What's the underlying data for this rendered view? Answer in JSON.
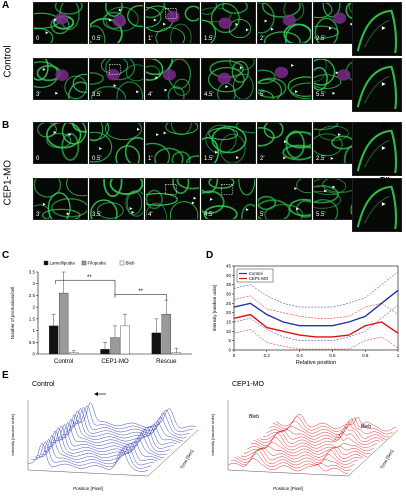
{
  "panels": {
    "A": "A",
    "B": "B",
    "C": "C",
    "D": "D",
    "E": "E",
    "A1": "A'",
    "A2": "A''",
    "B1": "B'",
    "B2": "B''"
  },
  "row_labels": {
    "control": "Control",
    "cep1mo": "CEP1-MO"
  },
  "timepoints_row1": [
    "0",
    "0.5'",
    "1'",
    "1.5'",
    "2'",
    "2.5'"
  ],
  "timepoints_row2": [
    "3'",
    "3.5'",
    "4'",
    "4.5'",
    "5'",
    "5.5'"
  ],
  "inset_tags": {
    "a1": "A'",
    "a2": "A''",
    "b1": "B'",
    "b2": "B''"
  },
  "colors": {
    "lamellipodia": "#111111",
    "filopodia": "#9a9a9a",
    "bleb": "#ffffff",
    "control": "#2233aa",
    "cep1mo": "#dd1111",
    "membrane": "#33cc55",
    "nucleus": "#7a2a8a"
  },
  "chart_data": [
    {
      "type": "bar",
      "panel": "C",
      "categories": [
        "Control",
        "CEP1-MO",
        "Rescue"
      ],
      "series": [
        {
          "name": "Lamellipodia",
          "values": [
            1.2,
            0.2,
            0.9
          ],
          "errors": [
            0.5,
            0.3,
            0.6
          ]
        },
        {
          "name": "Filopodia",
          "values": [
            2.6,
            0.7,
            1.7
          ],
          "errors": [
            1.2,
            0.5,
            0.6
          ]
        },
        {
          "name": "Bleb",
          "values": [
            0.05,
            1.2,
            0.05
          ],
          "errors": [
            0.1,
            0.5,
            0.2
          ]
        }
      ],
      "ylabel": "Number of protrusions/cell",
      "yticks": [
        "0",
        "0.5",
        "1",
        "1.5",
        "2",
        "2.5",
        "3",
        "3.5"
      ],
      "ylim": [
        0,
        3.5
      ],
      "significance": [
        "**",
        "**"
      ],
      "legend": "top"
    },
    {
      "type": "line",
      "panel": "D",
      "x": [
        0,
        0.1,
        0.2,
        0.3,
        0.4,
        0.5,
        0.6,
        0.7,
        0.8,
        0.9,
        1.0
      ],
      "series": [
        {
          "name": "Control",
          "values": [
            23,
            25,
            19,
            15,
            13,
            13,
            13,
            15,
            18,
            25,
            32
          ]
        },
        {
          "name": "CEP1-MO",
          "values": [
            17,
            19,
            12,
            10,
            8,
            7,
            7,
            8,
            13,
            15,
            9
          ]
        }
      ],
      "xlabel": "Relative position",
      "ylabel": "Intensity [random units]",
      "xticks": [
        "0",
        "0.2",
        "0.4",
        "0.6",
        "0.8",
        "1"
      ],
      "yticks": [
        "0",
        "5",
        "10",
        "15",
        "20",
        "25",
        "30",
        "35",
        "40",
        "45"
      ],
      "xlim": [
        0,
        1
      ],
      "ylim": [
        0,
        45
      ],
      "legend": "top-left"
    },
    {
      "type": "line",
      "panel": "E-left",
      "title": "Control",
      "xlabel": "Position [Pixel]",
      "ylabel": "Intensity [random units]",
      "zlabel": "Time [Sec]"
    },
    {
      "type": "line",
      "panel": "E-right",
      "title": "CEP1-MO",
      "xlabel": "Position [Pixel]",
      "ylabel": "Intensity [random units]",
      "zlabel": "Time [Sec]",
      "annotations": [
        "Bleb",
        "Bleb"
      ]
    }
  ]
}
